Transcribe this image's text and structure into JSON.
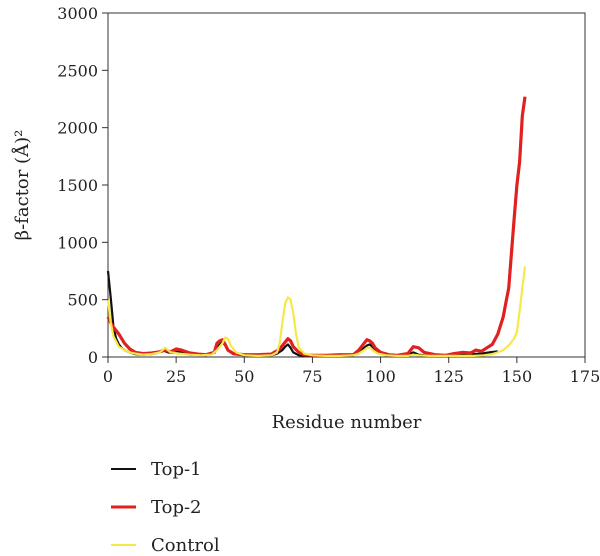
{
  "chart_data": {
    "type": "line",
    "title": "",
    "xlabel": "Residue number",
    "ylabel": "β-factor (Å)²",
    "xlim": [
      0,
      175
    ],
    "ylim": [
      0,
      3000
    ],
    "xticks": [
      "0",
      "25",
      "50",
      "75",
      "100",
      "125",
      "150",
      "175"
    ],
    "yticks": [
      "0",
      "500",
      "1000",
      "1500",
      "2000",
      "2500",
      "3000"
    ],
    "grid": false,
    "legend": "bottom-left",
    "series": [
      {
        "name": "Top-1",
        "color": "#111111",
        "x": [
          0,
          1,
          2,
          3,
          4,
          5,
          6,
          8,
          10,
          13,
          16,
          18,
          20,
          22,
          24,
          26,
          28,
          30,
          33,
          36,
          39,
          41,
          42,
          43,
          44,
          46,
          50,
          55,
          60,
          62,
          64,
          65,
          66,
          67,
          68,
          70,
          75,
          80,
          85,
          90,
          93,
          95,
          96,
          97,
          99,
          102,
          106,
          110,
          112,
          114,
          118,
          122,
          126,
          130,
          134,
          137,
          140,
          143
        ],
        "y": [
          750,
          520,
          260,
          160,
          110,
          80,
          60,
          40,
          25,
          20,
          25,
          35,
          60,
          40,
          35,
          50,
          30,
          20,
          18,
          20,
          40,
          110,
          130,
          100,
          60,
          25,
          15,
          15,
          15,
          30,
          60,
          90,
          110,
          80,
          40,
          15,
          10,
          10,
          10,
          15,
          60,
          100,
          110,
          90,
          40,
          15,
          10,
          20,
          40,
          20,
          10,
          15,
          20,
          20,
          25,
          30,
          40,
          50
        ]
      },
      {
        "name": "Top-2",
        "color": "#e0211f",
        "x": [
          0,
          1,
          2,
          4,
          6,
          8,
          10,
          13,
          16,
          19,
          21,
          23,
          25,
          27,
          30,
          33,
          36,
          39,
          40,
          41,
          42,
          43,
          44,
          46,
          50,
          55,
          60,
          63,
          65,
          66,
          67,
          68,
          70,
          72,
          75,
          80,
          85,
          90,
          92,
          94,
          95,
          96,
          97,
          98,
          100,
          103,
          106,
          110,
          112,
          114,
          116,
          120,
          124,
          127,
          130,
          133,
          135,
          137,
          139,
          141,
          143,
          145,
          146,
          147,
          148,
          149,
          150,
          151,
          152,
          153
        ],
        "y": [
          350,
          300,
          260,
          200,
          120,
          70,
          40,
          30,
          35,
          45,
          60,
          45,
          70,
          60,
          35,
          25,
          20,
          40,
          120,
          140,
          150,
          110,
          60,
          30,
          20,
          20,
          25,
          70,
          130,
          160,
          140,
          90,
          40,
          20,
          15,
          15,
          20,
          20,
          60,
          120,
          150,
          140,
          120,
          80,
          40,
          20,
          15,
          30,
          90,
          80,
          40,
          20,
          15,
          30,
          40,
          35,
          60,
          50,
          80,
          110,
          200,
          350,
          480,
          600,
          900,
          1200,
          1500,
          1700,
          2100,
          2270
        ]
      },
      {
        "name": "Control",
        "color": "#f7e84a",
        "x": [
          0,
          1,
          2,
          4,
          6,
          8,
          10,
          13,
          16,
          19,
          21,
          23,
          26,
          30,
          34,
          38,
          40,
          42,
          43,
          44,
          45,
          47,
          50,
          55,
          60,
          62,
          63,
          64,
          65,
          66,
          67,
          68,
          69,
          70,
          72,
          75,
          80,
          85,
          90,
          92,
          94,
          95,
          96,
          97,
          99,
          102,
          106,
          110,
          112,
          114,
          118,
          122,
          126,
          130,
          134,
          138,
          141,
          143,
          145,
          146,
          147,
          148,
          149,
          150,
          151,
          152,
          153
        ],
        "y": [
          500,
          300,
          180,
          90,
          60,
          40,
          30,
          20,
          25,
          40,
          80,
          40,
          30,
          20,
          15,
          20,
          60,
          120,
          170,
          160,
          100,
          40,
          15,
          10,
          15,
          40,
          120,
          300,
          470,
          520,
          500,
          380,
          200,
          80,
          30,
          15,
          10,
          10,
          15,
          30,
          60,
          80,
          80,
          60,
          30,
          15,
          10,
          10,
          20,
          15,
          10,
          10,
          10,
          10,
          10,
          15,
          25,
          40,
          60,
          80,
          100,
          130,
          160,
          220,
          400,
          600,
          790
        ]
      }
    ]
  }
}
